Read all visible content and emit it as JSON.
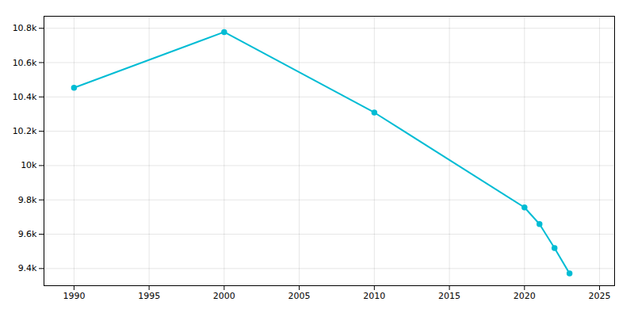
{
  "chart_data": {
    "type": "line",
    "x": [
      1990,
      2000,
      2010,
      2020,
      2021,
      2022,
      2023
    ],
    "values": [
      10453,
      10778,
      10309,
      9756,
      9659,
      9519,
      9371
    ],
    "color": "#00BCD4",
    "marker": "circle",
    "xlim": [
      1988,
      2026
    ],
    "xticks": [
      1990,
      1995,
      2000,
      2005,
      2010,
      2015,
      2020,
      2025
    ],
    "ylim": [
      9300,
      10870
    ],
    "yticks": [
      {
        "value": 9400,
        "label": "9.4k"
      },
      {
        "value": 9600,
        "label": "9.6k"
      },
      {
        "value": 9800,
        "label": "9.8k"
      },
      {
        "value": 10000,
        "label": "10k"
      },
      {
        "value": 10200,
        "label": "10.2k"
      },
      {
        "value": 10400,
        "label": "10.4k"
      },
      {
        "value": 10600,
        "label": "10.6k"
      },
      {
        "value": 10800,
        "label": "10.8k"
      }
    ],
    "grid": true
  }
}
